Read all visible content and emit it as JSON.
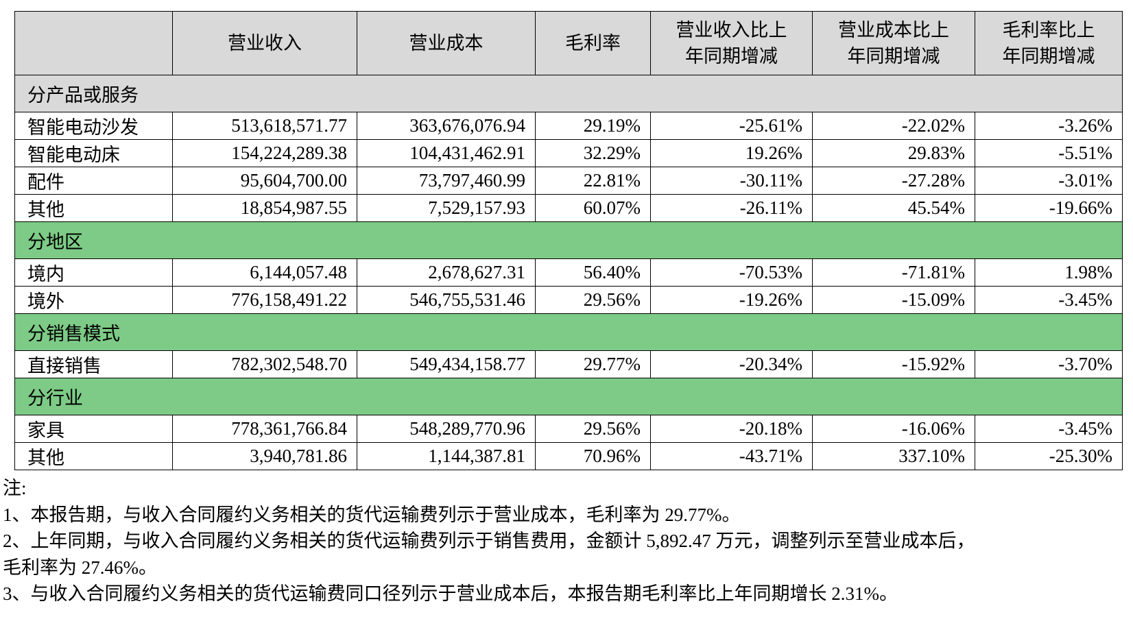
{
  "header": {
    "columns": [
      "营业收入",
      "营业成本",
      "毛利率",
      "营业收入比上\n年同期增减",
      "营业成本比上\n年同期增减",
      "毛利率比上\n年同期增减"
    ]
  },
  "sections": [
    {
      "title": "分产品或服务",
      "rows": [
        [
          "智能电动沙发",
          "513,618,571.77",
          "363,676,076.94",
          "29.19%",
          "-25.61%",
          "-22.02%",
          "-3.26%"
        ],
        [
          "智能电动床",
          "154,224,289.38",
          "104,431,462.91",
          "32.29%",
          "19.26%",
          "29.83%",
          "-5.51%"
        ],
        [
          "配件",
          "95,604,700.00",
          "73,797,460.99",
          "22.81%",
          "-30.11%",
          "-27.28%",
          "-3.01%"
        ],
        [
          "其他",
          "18,854,987.55",
          "7,529,157.93",
          "60.07%",
          "-26.11%",
          "45.54%",
          "-19.66%"
        ]
      ]
    },
    {
      "title": "分地区",
      "rows": [
        [
          "境内",
          "6,144,057.48",
          "2,678,627.31",
          "56.40%",
          "-70.53%",
          "-71.81%",
          "1.98%"
        ],
        [
          "境外",
          "776,158,491.22",
          "546,755,531.46",
          "29.56%",
          "-19.26%",
          "-15.09%",
          "-3.45%"
        ]
      ]
    },
    {
      "title": "分销售模式",
      "rows": [
        [
          "直接销售",
          "782,302,548.70",
          "549,434,158.77",
          "29.77%",
          "-20.34%",
          "-15.92%",
          "-3.70%"
        ]
      ]
    },
    {
      "title": "分行业",
      "rows": [
        [
          "家具",
          "778,361,766.84",
          "548,289,770.96",
          "29.56%",
          "-20.18%",
          "-16.06%",
          "-3.45%"
        ],
        [
          "其他",
          "3,940,781.86",
          "1,144,387.81",
          "70.96%",
          "-43.71%",
          "337.10%",
          "-25.30%"
        ]
      ]
    }
  ],
  "notes": [
    "注:",
    "1、本报告期，与收入合同履约义务相关的货代运输费列示于营业成本，毛利率为 29.77%。",
    "2、上年同期，与收入合同履约义务相关的货代运输费列示于销售费用，金额计 5,892.47 万元，调整列示至营业成本后，",
    "毛利率为 27.46%。",
    "3、与收入合同履约义务相关的货代运输费同口径列示于营业成本后，本报告期毛利率比上年同期增长 2.31%。"
  ]
}
